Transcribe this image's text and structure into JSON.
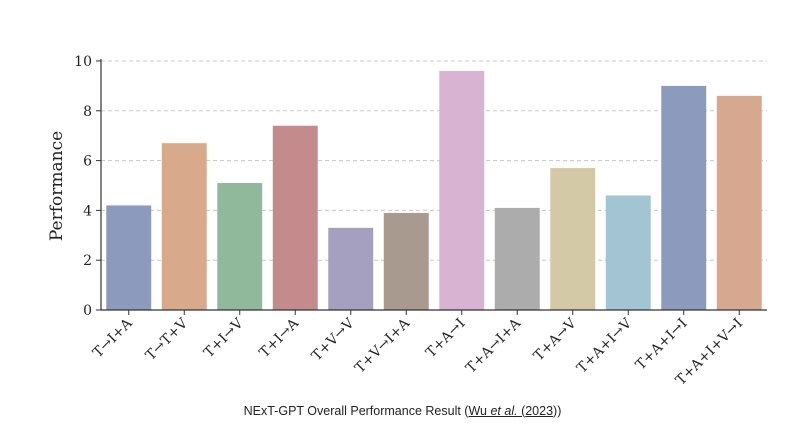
{
  "chart_data": {
    "type": "bar",
    "title": "",
    "xlabel": "",
    "ylabel": "Performance",
    "ylim": [
      0,
      10
    ],
    "yticks": [
      0,
      2,
      4,
      6,
      8,
      10
    ],
    "grid": "horizontal dashed",
    "categories": [
      "T→I+A",
      "T→T+V",
      "T+I→V",
      "T+I→A",
      "T+V→V",
      "T+V→I+A",
      "T+A→I",
      "T+A→I+A",
      "T+A→V",
      "T+A+I→V",
      "T+A+I→I",
      "T+A+I+V→I"
    ],
    "values": [
      4.2,
      6.7,
      5.1,
      7.4,
      3.3,
      3.9,
      9.6,
      4.1,
      5.7,
      4.6,
      9.0,
      8.6
    ],
    "colors": [
      "#8c9bbd",
      "#d9a98c",
      "#8fb99a",
      "#c48b8c",
      "#a59fc0",
      "#a99a8f",
      "#d9b3d2",
      "#acacac",
      "#d3c9a6",
      "#a3c5d3",
      "#8c9bbd",
      "#d6a88f"
    ]
  },
  "caption": {
    "prefix": "NExT-GPT Overall Performance Result (",
    "author": "Wu",
    "etal": "et al.",
    "open_paren": " (",
    "year": "2023",
    "suffix": "))"
  }
}
